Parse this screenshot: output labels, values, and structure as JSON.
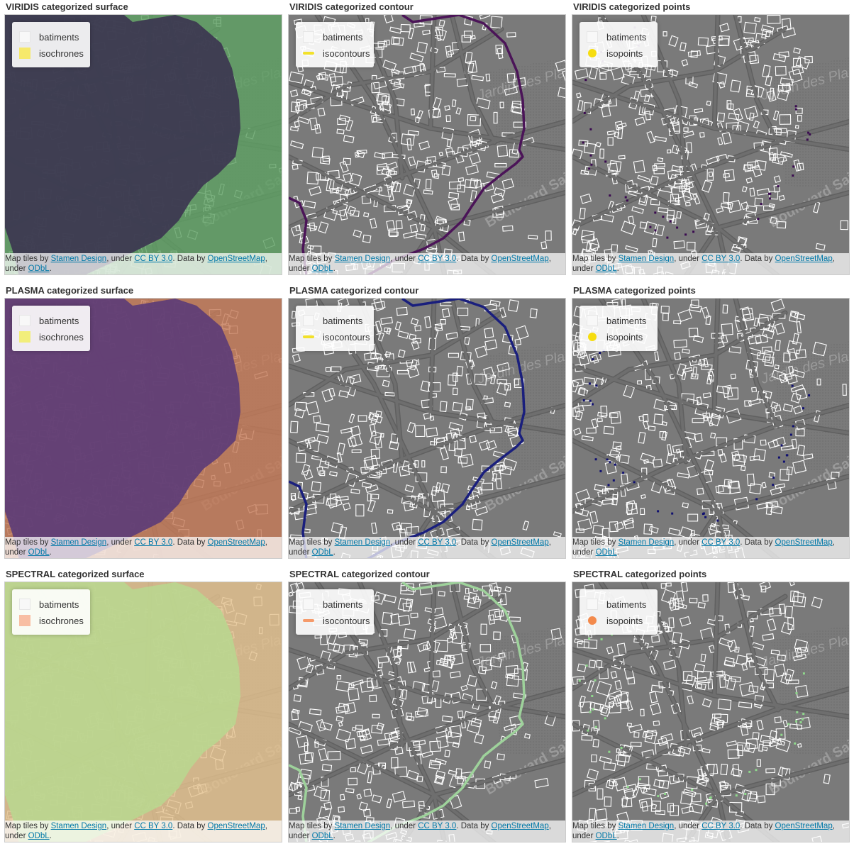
{
  "map_labels": [
    "Jardin des Plantes",
    "Boulevard Saint-Marcel"
  ],
  "attribution": {
    "prefix": "Map tiles by ",
    "link1": "Stamen Design",
    "mid1": ", under ",
    "link2": "CC BY 3.0",
    "mid2": ". Data by ",
    "link3": "OpenStreetMap",
    "mid3": ", under ",
    "link4": "ODbL",
    "suffix": "."
  },
  "panels": [
    {
      "title": "VIRIDIS categorized surface",
      "kind": "surface",
      "inner": "#3b3450",
      "outer": "#5ea063",
      "legend": {
        "buildings": "batiments",
        "layer": "isochrones",
        "swatch": "#f6e96b"
      }
    },
    {
      "title": "VIRIDIS categorized contour",
      "kind": "contour",
      "inner": "#4b1458",
      "outer": "#4b1458",
      "legend": {
        "buildings": "batiments",
        "layer": "isocontours",
        "swatch": "#f2e12a"
      }
    },
    {
      "title": "VIRIDIS categorized points",
      "kind": "points",
      "inner": "#3a0a50",
      "outer": "#3a0a50",
      "legend": {
        "buildings": "batiments",
        "layer": "isopoints",
        "swatch": "#f6dd10"
      }
    },
    {
      "title": "PLASMA categorized surface",
      "kind": "surface",
      "inner": "#5b3b78",
      "outer": "#c47a58",
      "legend": {
        "buildings": "batiments",
        "layer": "isochrones",
        "swatch": "#f2ee7b"
      }
    },
    {
      "title": "PLASMA categorized contour",
      "kind": "contour",
      "inner": "#1a1f7d",
      "outer": "#1a1f7d",
      "legend": {
        "buildings": "batiments",
        "layer": "isocontours",
        "swatch": "#f2e12a"
      }
    },
    {
      "title": "PLASMA categorized points",
      "kind": "points",
      "inner": "#101070",
      "outer": "#101070",
      "legend": {
        "buildings": "batiments",
        "layer": "isopoints",
        "swatch": "#f6dd10"
      }
    },
    {
      "title": "SPECTRAL categorized surface",
      "kind": "surface",
      "inner": "#b9d68f",
      "outer": "#e4c28f",
      "legend": {
        "buildings": "batiments",
        "layer": "isochrones",
        "swatch": "#f8bea3"
      }
    },
    {
      "title": "SPECTRAL categorized contour",
      "kind": "contour",
      "inner": "#9ed29b",
      "outer": "#9ed29b",
      "legend": {
        "buildings": "batiments",
        "layer": "isocontours",
        "swatch": "#f59a6a"
      }
    },
    {
      "title": "SPECTRAL categorized points",
      "kind": "points",
      "inner": "#8fd88c",
      "outer": "#8fd88c",
      "legend": {
        "buildings": "batiments",
        "layer": "isopoints",
        "swatch": "#f38a4c"
      }
    }
  ]
}
